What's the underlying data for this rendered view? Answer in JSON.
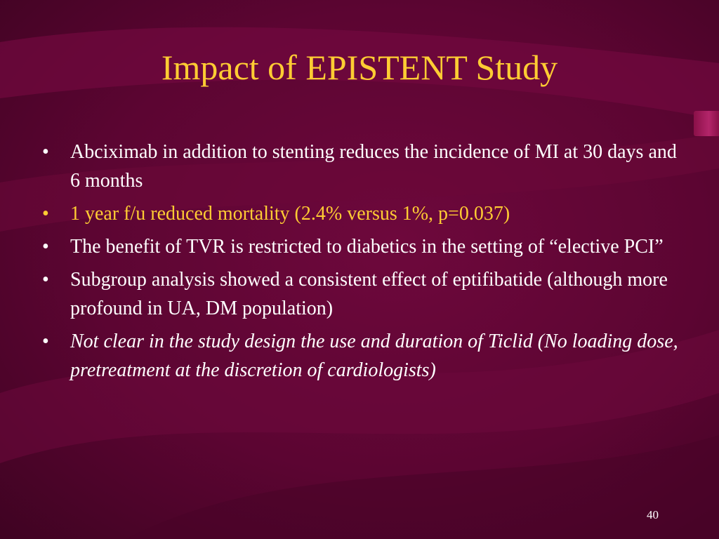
{
  "slide": {
    "title": "Impact of EPISTENT Study",
    "bullet_marker": "•",
    "bullets": [
      {
        "text": "Abciximab in addition to stenting reduces the incidence of MI at 30 days and 6 months",
        "style": "normal"
      },
      {
        "text": "1 year f/u reduced mortality (2.4% versus 1%, p=0.037)",
        "style": "highlight"
      },
      {
        "text": "The benefit of TVR is restricted to diabetics in the setting of “elective PCI”",
        "style": "normal"
      },
      {
        "text": "Subgroup analysis showed a consistent effect of eptifibatide (although more profound in UA, DM population)",
        "style": "normal"
      },
      {
        "text": "Not clear in the study design the use and duration of Ticlid (No loading dose, pretreatment at the discretion of cardiologists)",
        "style": "italic"
      }
    ],
    "page_number": "40"
  },
  "colors": {
    "background": "#5c0532",
    "title": "#ffcc33",
    "body_text": "#ffffff",
    "highlight_text": "#ffcc33",
    "swoosh": "#7a0b42"
  }
}
